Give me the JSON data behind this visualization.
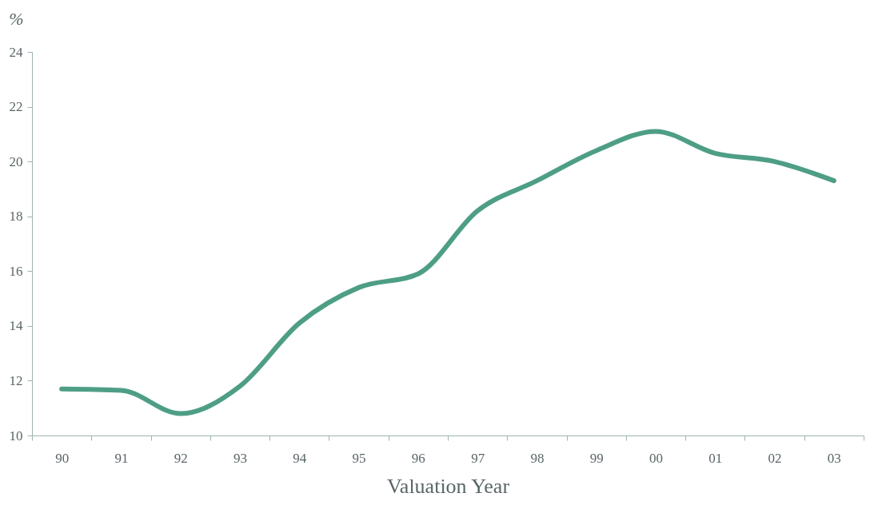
{
  "chart_data": {
    "type": "line",
    "xlabel": "Valuation Year",
    "ylabel": "%",
    "categories": [
      "90",
      "91",
      "92",
      "93",
      "94",
      "95",
      "96",
      "97",
      "98",
      "99",
      "00",
      "01",
      "02",
      "03"
    ],
    "series": [
      {
        "color": "#4e9e86",
        "values": [
          11.7,
          11.65,
          10.8,
          11.8,
          14.1,
          15.4,
          15.9,
          18.2,
          19.3,
          20.4,
          21.1,
          20.3,
          20.0,
          19.3
        ]
      }
    ],
    "ylim": [
      10,
      24
    ],
    "yticks": [
      10,
      12,
      14,
      16,
      18,
      20,
      22,
      24
    ],
    "grid": false,
    "marker": "none",
    "line_style": "solid"
  }
}
